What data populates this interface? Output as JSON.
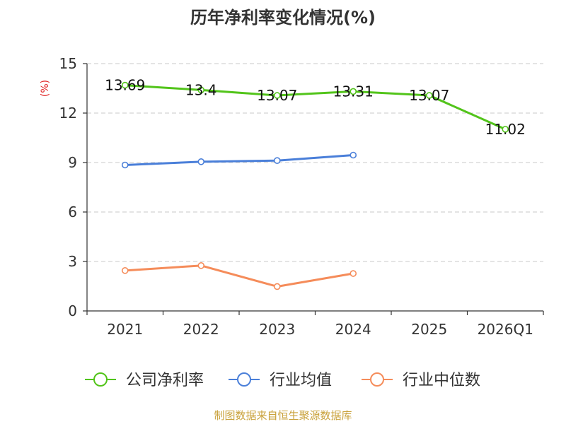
{
  "chart_data": {
    "type": "line",
    "title": "历年净利率变化情况(%)",
    "ylabel": "(%)",
    "xlabel": "",
    "categories": [
      "2021",
      "2022",
      "2023",
      "2024",
      "2025",
      "2026Q1"
    ],
    "ylim": [
      0,
      15
    ],
    "yticks": [
      "0",
      "3",
      "6",
      "9",
      "12",
      "15"
    ],
    "grid": true,
    "legend_position": "bottom",
    "series": [
      {
        "name": "公司净利率",
        "color": "#52c41a",
        "values": [
          13.69,
          13.4,
          13.07,
          13.31,
          13.07,
          11.02
        ],
        "labels": [
          "13.69",
          "13.4",
          "13.07",
          "13.31",
          "13.07",
          "11.02"
        ]
      },
      {
        "name": "行业均值",
        "color": "#4a7fd9",
        "values": [
          8.85,
          9.05,
          9.12,
          9.45,
          null,
          null
        ]
      },
      {
        "name": "行业中位数",
        "color": "#f58c5a",
        "values": [
          2.45,
          2.75,
          1.48,
          2.27,
          null,
          null
        ]
      }
    ]
  },
  "ylabel_color": "#e02020",
  "source": {
    "text": "制图数据来自恒生聚源数据库",
    "color": "#c9a13a"
  }
}
